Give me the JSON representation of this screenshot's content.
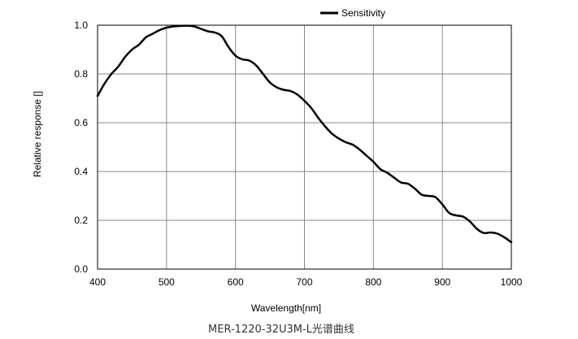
{
  "chart_data": {
    "type": "line",
    "xlabel": "Wavelength[nm]",
    "ylabel": "Relative response []",
    "xlim": [
      400,
      1000
    ],
    "ylim": [
      0,
      1.0
    ],
    "x_ticks": [
      "400",
      "500",
      "600",
      "700",
      "800",
      "900",
      "1000"
    ],
    "y_ticks": [
      "0.0",
      "0.2",
      "0.4",
      "0.6",
      "0.8",
      "1.0"
    ],
    "grid": true,
    "legend_position": "top-center",
    "caption": "MER-1220-32U3M-L光谱曲线",
    "series": [
      {
        "name": "Sensitivity",
        "color": "#000000",
        "x": [
          400,
          410,
          420,
          430,
          440,
          450,
          460,
          470,
          480,
          490,
          500,
          510,
          520,
          530,
          540,
          550,
          560,
          570,
          580,
          590,
          600,
          610,
          620,
          630,
          640,
          650,
          660,
          670,
          680,
          690,
          700,
          710,
          720,
          730,
          740,
          750,
          760,
          770,
          780,
          790,
          800,
          810,
          820,
          830,
          840,
          850,
          860,
          870,
          880,
          890,
          900,
          910,
          920,
          930,
          940,
          950,
          960,
          970,
          980,
          990,
          1000
        ],
        "y": [
          0.71,
          0.76,
          0.8,
          0.83,
          0.87,
          0.9,
          0.92,
          0.95,
          0.965,
          0.98,
          0.99,
          0.995,
          0.997,
          0.998,
          0.995,
          0.985,
          0.975,
          0.97,
          0.955,
          0.91,
          0.875,
          0.86,
          0.855,
          0.835,
          0.8,
          0.765,
          0.745,
          0.735,
          0.73,
          0.715,
          0.69,
          0.66,
          0.62,
          0.585,
          0.555,
          0.535,
          0.52,
          0.51,
          0.49,
          0.465,
          0.44,
          0.41,
          0.395,
          0.375,
          0.355,
          0.35,
          0.33,
          0.305,
          0.3,
          0.295,
          0.265,
          0.23,
          0.22,
          0.215,
          0.195,
          0.165,
          0.148,
          0.15,
          0.145,
          0.13,
          0.11
        ]
      }
    ]
  }
}
